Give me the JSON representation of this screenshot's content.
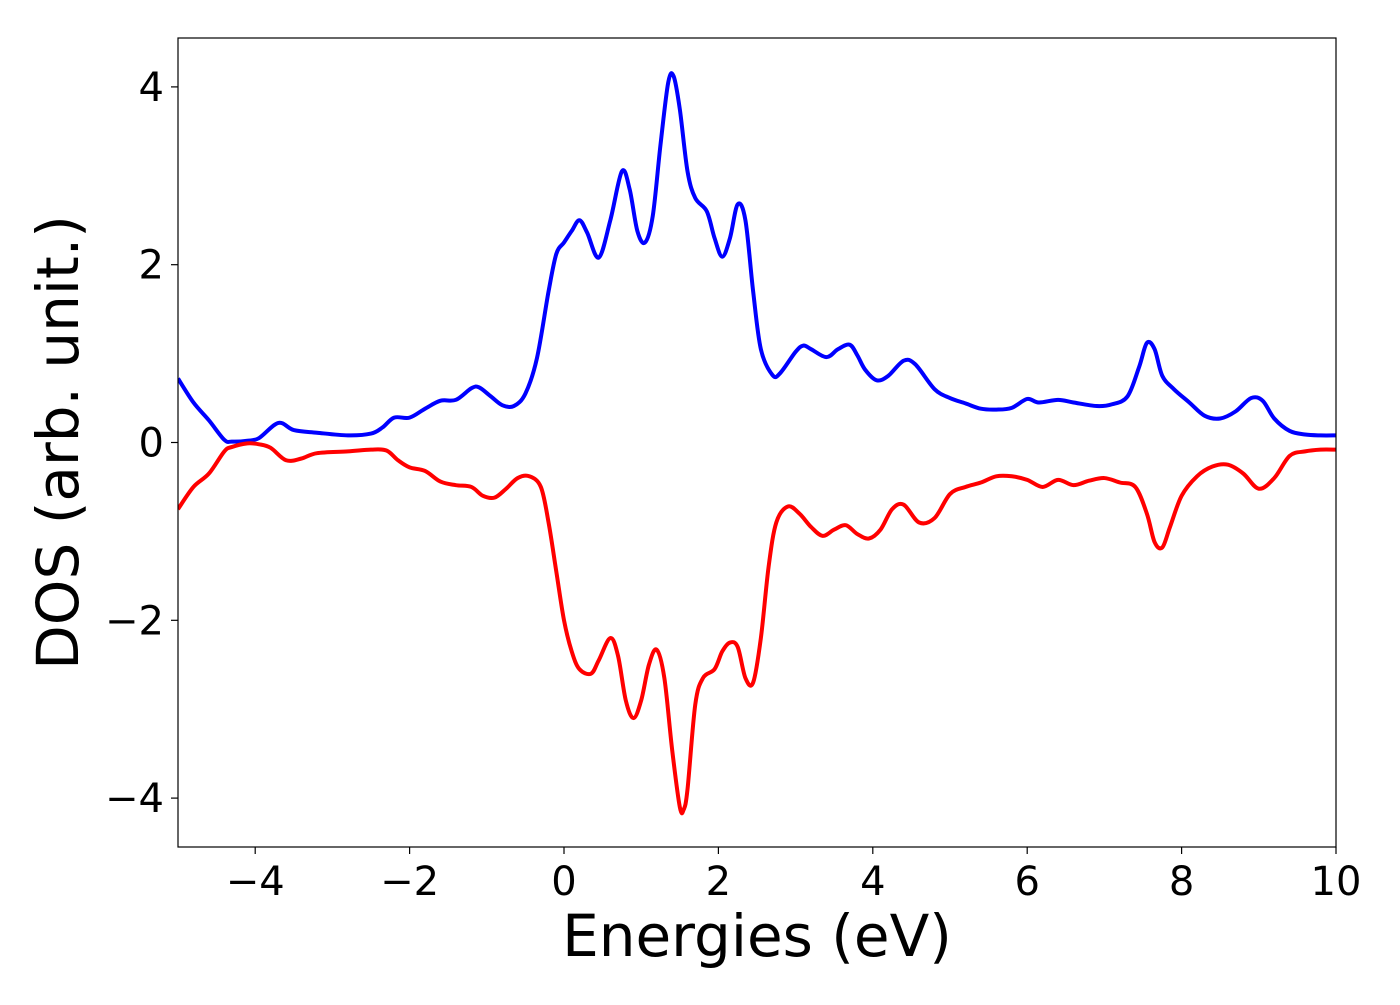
{
  "chart_data": {
    "type": "line",
    "title": "",
    "xlabel": "Energies (eV)",
    "ylabel": "DOS (arb. unit.)",
    "xlim": [
      -5,
      10
    ],
    "ylim": [
      -4.55,
      4.55
    ],
    "xticks": [
      -4,
      -2,
      0,
      2,
      4,
      6,
      8,
      10
    ],
    "yticks": [
      -4,
      -2,
      0,
      2,
      4
    ],
    "xtick_labels": [
      "−4",
      "−2",
      "0",
      "2",
      "4",
      "6",
      "8",
      "10"
    ],
    "ytick_labels": [
      "−4",
      "−2",
      "0",
      "2",
      "4"
    ],
    "grid": false,
    "legend": "none",
    "series": [
      {
        "color": "#0000ff",
        "x": [
          -5.0,
          -4.8,
          -4.6,
          -4.4,
          -4.3,
          -4.1,
          -3.95,
          -3.7,
          -3.5,
          -3.2,
          -2.8,
          -2.5,
          -2.35,
          -2.2,
          -2.0,
          -1.8,
          -1.6,
          -1.4,
          -1.2,
          -1.1,
          -0.95,
          -0.8,
          -0.65,
          -0.5,
          -0.35,
          -0.2,
          -0.1,
          0.0,
          0.1,
          0.2,
          0.3,
          0.45,
          0.6,
          0.75,
          0.85,
          0.95,
          1.05,
          1.15,
          1.25,
          1.35,
          1.42,
          1.5,
          1.6,
          1.7,
          1.85,
          1.95,
          2.05,
          2.15,
          2.25,
          2.35,
          2.45,
          2.55,
          2.7,
          2.8,
          3.0,
          3.1,
          3.2,
          3.4,
          3.55,
          3.7,
          3.8,
          3.9,
          4.05,
          4.2,
          4.4,
          4.55,
          4.8,
          5.0,
          5.2,
          5.4,
          5.6,
          5.8,
          6.0,
          6.15,
          6.4,
          6.6,
          6.9,
          7.1,
          7.3,
          7.45,
          7.55,
          7.65,
          7.75,
          7.9,
          8.1,
          8.3,
          8.5,
          8.7,
          8.9,
          9.05,
          9.2,
          9.4,
          9.6,
          9.8,
          10.0
        ],
        "y": [
          0.72,
          0.45,
          0.25,
          0.03,
          0.01,
          0.02,
          0.05,
          0.22,
          0.14,
          0.11,
          0.08,
          0.1,
          0.17,
          0.28,
          0.28,
          0.38,
          0.47,
          0.48,
          0.61,
          0.62,
          0.52,
          0.42,
          0.41,
          0.55,
          0.95,
          1.7,
          2.12,
          2.25,
          2.38,
          2.5,
          2.36,
          2.08,
          2.5,
          3.05,
          2.85,
          2.38,
          2.25,
          2.55,
          3.35,
          4.05,
          4.12,
          3.75,
          3.05,
          2.75,
          2.6,
          2.3,
          2.09,
          2.3,
          2.68,
          2.5,
          1.7,
          1.05,
          0.76,
          0.78,
          1.02,
          1.09,
          1.05,
          0.96,
          1.05,
          1.1,
          0.98,
          0.82,
          0.7,
          0.75,
          0.92,
          0.88,
          0.6,
          0.5,
          0.44,
          0.38,
          0.37,
          0.39,
          0.49,
          0.45,
          0.48,
          0.45,
          0.41,
          0.43,
          0.52,
          0.85,
          1.12,
          1.05,
          0.75,
          0.6,
          0.45,
          0.3,
          0.27,
          0.35,
          0.5,
          0.47,
          0.27,
          0.13,
          0.09,
          0.08,
          0.08
        ]
      },
      {
        "color": "#ff0000",
        "x": [
          -5.0,
          -4.8,
          -4.6,
          -4.4,
          -4.3,
          -4.1,
          -3.95,
          -3.8,
          -3.6,
          -3.4,
          -3.2,
          -2.8,
          -2.5,
          -2.3,
          -2.15,
          -2.0,
          -1.8,
          -1.6,
          -1.4,
          -1.2,
          -1.05,
          -0.9,
          -0.75,
          -0.6,
          -0.45,
          -0.3,
          -0.2,
          -0.1,
          0.0,
          0.1,
          0.2,
          0.35,
          0.45,
          0.6,
          0.7,
          0.8,
          0.9,
          1.0,
          1.1,
          1.2,
          1.3,
          1.4,
          1.5,
          1.55,
          1.6,
          1.7,
          1.8,
          1.95,
          2.05,
          2.15,
          2.25,
          2.35,
          2.45,
          2.55,
          2.65,
          2.75,
          2.9,
          3.05,
          3.2,
          3.35,
          3.5,
          3.65,
          3.8,
          3.95,
          4.1,
          4.25,
          4.4,
          4.6,
          4.8,
          5.0,
          5.2,
          5.4,
          5.6,
          5.8,
          6.0,
          6.2,
          6.4,
          6.6,
          6.8,
          7.0,
          7.2,
          7.4,
          7.55,
          7.65,
          7.75,
          7.85,
          8.0,
          8.2,
          8.4,
          8.6,
          8.8,
          9.0,
          9.2,
          9.4,
          9.6,
          9.8,
          10.0
        ],
        "y": [
          -0.75,
          -0.5,
          -0.35,
          -0.1,
          -0.05,
          -0.01,
          -0.02,
          -0.06,
          -0.2,
          -0.18,
          -0.12,
          -0.1,
          -0.08,
          -0.09,
          -0.2,
          -0.28,
          -0.32,
          -0.44,
          -0.48,
          -0.5,
          -0.6,
          -0.62,
          -0.52,
          -0.4,
          -0.38,
          -0.5,
          -0.9,
          -1.45,
          -2.0,
          -2.35,
          -2.55,
          -2.6,
          -2.45,
          -2.2,
          -2.4,
          -2.9,
          -3.1,
          -2.9,
          -2.5,
          -2.33,
          -2.65,
          -3.45,
          -4.1,
          -4.13,
          -3.9,
          -2.95,
          -2.65,
          -2.55,
          -2.35,
          -2.25,
          -2.3,
          -2.65,
          -2.7,
          -2.2,
          -1.4,
          -0.9,
          -0.72,
          -0.8,
          -0.95,
          -1.05,
          -0.98,
          -0.93,
          -1.03,
          -1.08,
          -0.98,
          -0.75,
          -0.7,
          -0.9,
          -0.85,
          -0.58,
          -0.5,
          -0.45,
          -0.38,
          -0.38,
          -0.42,
          -0.5,
          -0.42,
          -0.48,
          -0.43,
          -0.4,
          -0.45,
          -0.5,
          -0.8,
          -1.12,
          -1.18,
          -0.95,
          -0.6,
          -0.38,
          -0.27,
          -0.25,
          -0.35,
          -0.52,
          -0.4,
          -0.15,
          -0.1,
          -0.08,
          -0.08
        ]
      }
    ]
  }
}
